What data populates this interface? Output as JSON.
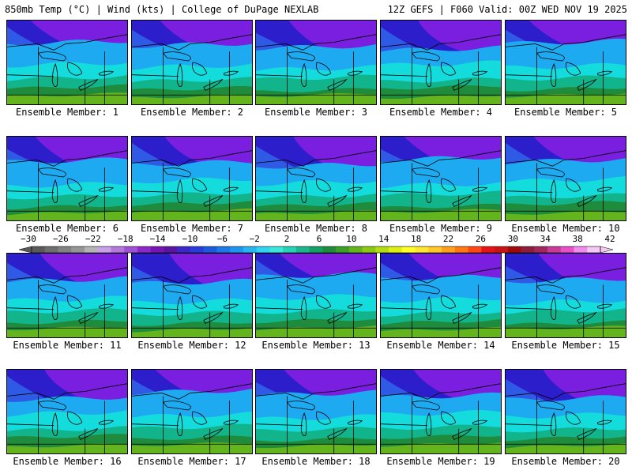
{
  "header": {
    "left": "850mb Temp (°C) | Wind (kts) | College of DuPage NEXLAB",
    "right": "12Z GEFS | F060 Valid: 00Z WED NOV 19 2025"
  },
  "panel_label_prefix": "Ensemble Member: ",
  "members": [
    {
      "label": "Ensemble Member: 1"
    },
    {
      "label": "Ensemble Member: 2"
    },
    {
      "label": "Ensemble Member: 3"
    },
    {
      "label": "Ensemble Member: 4"
    },
    {
      "label": "Ensemble Member: 5"
    },
    {
      "label": "Ensemble Member: 6"
    },
    {
      "label": "Ensemble Member: 7"
    },
    {
      "label": "Ensemble Member: 8"
    },
    {
      "label": "Ensemble Member: 9"
    },
    {
      "label": "Ensemble Member: 10"
    },
    {
      "label": "Ensemble Member: 11"
    },
    {
      "label": "Ensemble Member: 12"
    },
    {
      "label": "Ensemble Member: 13"
    },
    {
      "label": "Ensemble Member: 14"
    },
    {
      "label": "Ensemble Member: 15"
    },
    {
      "label": "Ensemble Member: 16"
    },
    {
      "label": "Ensemble Member: 17"
    },
    {
      "label": "Ensemble Member: 18"
    },
    {
      "label": "Ensemble Member: 19"
    },
    {
      "label": "Ensemble Member: 20"
    }
  ],
  "colorbar": {
    "tick_labels": [
      "−30",
      "−26",
      "−22",
      "−18",
      "−14",
      "−10",
      "−6",
      "−2",
      "2",
      "6",
      "10",
      "14",
      "18",
      "22",
      "26",
      "30",
      "34",
      "38",
      "42"
    ],
    "colors": [
      "#5a5a5a",
      "#6e6e6e",
      "#828282",
      "#969696",
      "#b4b4b4",
      "#c8a0e6",
      "#b478dc",
      "#a050d2",
      "#8c28c8",
      "#7814b4",
      "#5a14a0",
      "#3c28c8",
      "#283cdc",
      "#1e5adc",
      "#1e78e6",
      "#1e96f0",
      "#28b4f0",
      "#32d2f0",
      "#3ce6dc",
      "#28d2b4",
      "#1eb48c",
      "#14a064",
      "#1e8c3c",
      "#3ca028",
      "#64b41e",
      "#8cc814",
      "#b4dc14",
      "#dcf014",
      "#ffff28",
      "#ffe632",
      "#ffc828",
      "#ffa01e",
      "#ff7814",
      "#ff4614",
      "#e61414",
      "#c81414",
      "#a00a0a",
      "#8c1e3c",
      "#a0285a",
      "#c83c96",
      "#e650c8",
      "#f08cf0",
      "#f5c8f5"
    ]
  },
  "map_colors": {
    "purple": "#7a1ee0",
    "blue_dark": "#2d1ecc",
    "blue": "#2f5ae6",
    "cyan": "#1eaaf0",
    "aqua": "#14dcdc",
    "teal": "#12b48c",
    "green": "#1e8c3c",
    "lime": "#64b41e",
    "yellow": "#dcdc14"
  }
}
